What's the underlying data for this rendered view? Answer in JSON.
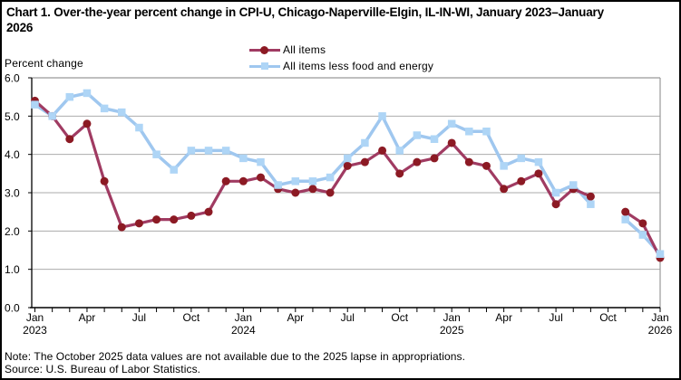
{
  "chart_data": {
    "type": "line",
    "title": "Chart 1. Over-the-year percent change in CPI-U, Chicago-Naperville-Elgin, IL-IN-WI, January 2023–January 2026",
    "ylabel": "Percent change",
    "note": "Note: The October 2025 data values are not available due to the 2025 lapse in appropriations.",
    "source": "Source: U.S. Bureau of Labor Statistics.",
    "ylim": [
      0,
      6
    ],
    "y_tick_labels": [
      "6.0",
      "5.0",
      "4.0",
      "3.0",
      "2.0",
      "1.0",
      "0.0"
    ],
    "grid": true,
    "legend_position": "top-center",
    "categories": [
      "Jan 2023",
      "Feb 2023",
      "Mar 2023",
      "Apr 2023",
      "May 2023",
      "Jun 2023",
      "Jul 2023",
      "Aug 2023",
      "Sep 2023",
      "Oct 2023",
      "Nov 2023",
      "Dec 2023",
      "Jan 2024",
      "Feb 2024",
      "Mar 2024",
      "Apr 2024",
      "May 2024",
      "Jun 2024",
      "Jul 2024",
      "Aug 2024",
      "Sep 2024",
      "Oct 2024",
      "Nov 2024",
      "Dec 2024",
      "Jan 2025",
      "Feb 2025",
      "Mar 2025",
      "Apr 2025",
      "May 2025",
      "Jun 2025",
      "Jul 2025",
      "Aug 2025",
      "Sep 2025",
      "Oct 2025",
      "Nov 2025",
      "Dec 2025",
      "Jan 2026"
    ],
    "x_tick_labels": [
      {
        "i": 0,
        "month": "Jan",
        "year": "2023"
      },
      {
        "i": 3,
        "month": "Apr"
      },
      {
        "i": 6,
        "month": "Jul"
      },
      {
        "i": 9,
        "month": "Oct"
      },
      {
        "i": 12,
        "month": "Jan",
        "year": "2024"
      },
      {
        "i": 15,
        "month": "Apr"
      },
      {
        "i": 18,
        "month": "Jul"
      },
      {
        "i": 21,
        "month": "Oct"
      },
      {
        "i": 24,
        "month": "Jan",
        "year": "2025"
      },
      {
        "i": 27,
        "month": "Apr"
      },
      {
        "i": 30,
        "month": "Jul"
      },
      {
        "i": 33,
        "month": "Oct"
      },
      {
        "i": 36,
        "month": "Jan",
        "year": "2026"
      }
    ],
    "series": [
      {
        "name": "All items",
        "marker": "circle",
        "line_color": "#a03b62",
        "marker_color": "#8c1a24",
        "values": [
          5.4,
          5.0,
          4.4,
          4.8,
          3.3,
          2.1,
          2.2,
          2.3,
          2.3,
          2.4,
          2.5,
          3.3,
          3.3,
          3.4,
          3.1,
          3.0,
          3.1,
          3.0,
          3.7,
          3.8,
          4.1,
          3.5,
          3.8,
          3.9,
          4.3,
          3.8,
          3.7,
          3.1,
          3.3,
          3.5,
          2.7,
          3.1,
          2.9,
          null,
          2.5,
          2.2,
          1.3
        ]
      },
      {
        "name": "All items less food and energy",
        "marker": "square",
        "line_color": "#9fc7ef",
        "marker_color": "#aed5f6",
        "values": [
          5.3,
          5.0,
          5.5,
          5.6,
          5.2,
          5.1,
          4.7,
          4.0,
          3.6,
          4.1,
          4.1,
          4.1,
          3.9,
          3.8,
          3.2,
          3.3,
          3.3,
          3.4,
          3.9,
          4.3,
          5.0,
          4.1,
          4.5,
          4.4,
          4.8,
          4.6,
          4.6,
          3.7,
          3.9,
          3.8,
          3.0,
          3.2,
          2.7,
          null,
          2.3,
          1.9,
          1.4
        ]
      }
    ],
    "colors": {
      "gridline": "#ababab",
      "plot_border": "#999999",
      "axis": "#000000"
    }
  }
}
